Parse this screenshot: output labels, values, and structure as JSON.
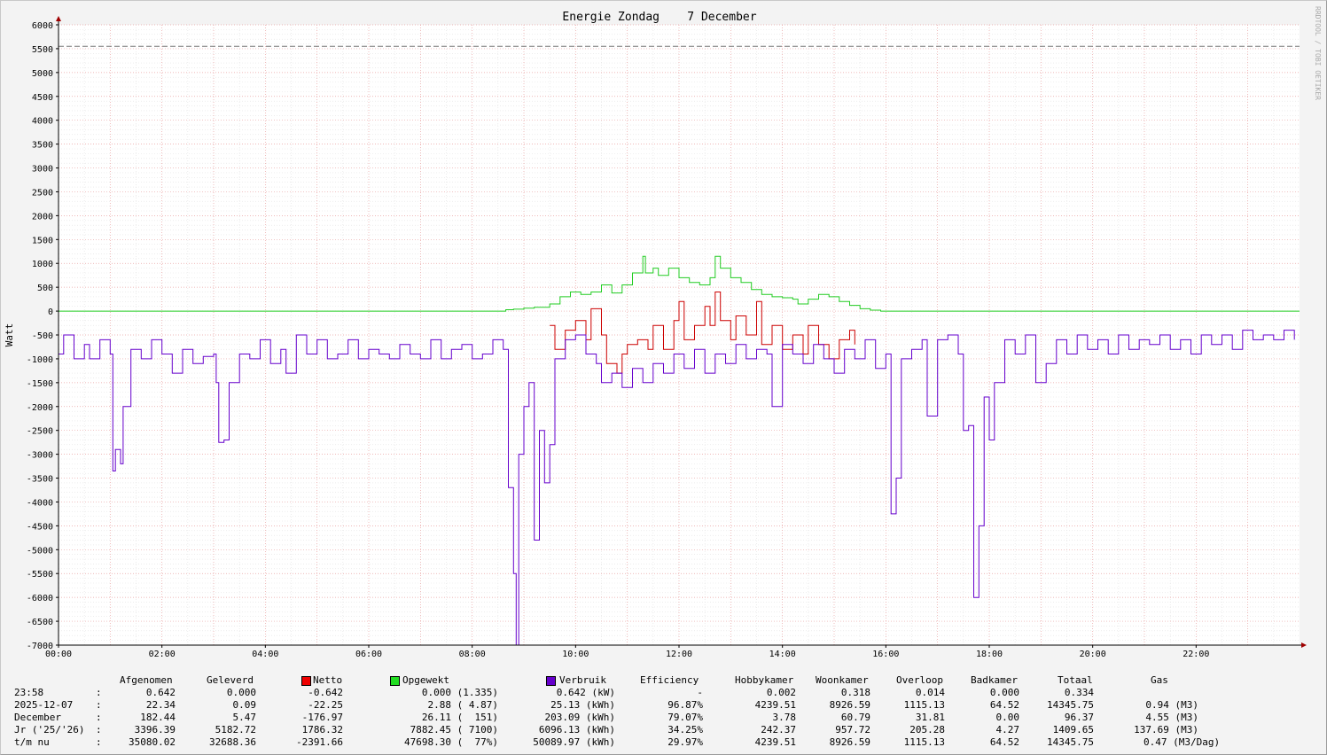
{
  "chart_data": {
    "type": "line",
    "title": "Energie Zondag    7 December",
    "ylabel": "Watt",
    "xlabel": "",
    "watermark": "RRDTOOL / TOBI OETIKER",
    "ylim": [
      -7000,
      6000
    ],
    "xlim": [
      0,
      24
    ],
    "yticks": [
      "6000",
      "5500",
      "5000",
      "4500",
      "4000",
      "3500",
      "3000",
      "2500",
      "2000",
      "1500",
      "1000",
      "500",
      "0",
      "-500",
      "-1000",
      "-1500",
      "-2000",
      "-2500",
      "-3000",
      "-3500",
      "-4000",
      "-4500",
      "-5000",
      "-5500",
      "-6000",
      "-6500",
      "-7000"
    ],
    "xticks": [
      "00:00",
      "02:00",
      "04:00",
      "06:00",
      "08:00",
      "10:00",
      "12:00",
      "14:00",
      "16:00",
      "18:00",
      "20:00",
      "22:00"
    ],
    "grid": true,
    "hline": {
      "value": 5550,
      "style": "dashed",
      "color": "#777777"
    },
    "series": [
      {
        "name": "Opgewekt",
        "color": "#22cc22",
        "points": [
          [
            0,
            0
          ],
          [
            8.6,
            0
          ],
          [
            8.65,
            30
          ],
          [
            8.8,
            40
          ],
          [
            9.0,
            60
          ],
          [
            9.2,
            80
          ],
          [
            9.5,
            150
          ],
          [
            9.7,
            300
          ],
          [
            9.9,
            400
          ],
          [
            10.1,
            350
          ],
          [
            10.3,
            400
          ],
          [
            10.5,
            550
          ],
          [
            10.7,
            380
          ],
          [
            10.9,
            550
          ],
          [
            11.1,
            800
          ],
          [
            11.3,
            1150
          ],
          [
            11.35,
            800
          ],
          [
            11.5,
            900
          ],
          [
            11.6,
            750
          ],
          [
            11.8,
            900
          ],
          [
            12.0,
            700
          ],
          [
            12.2,
            600
          ],
          [
            12.4,
            550
          ],
          [
            12.6,
            700
          ],
          [
            12.7,
            1150
          ],
          [
            12.8,
            900
          ],
          [
            13.0,
            700
          ],
          [
            13.2,
            600
          ],
          [
            13.4,
            450
          ],
          [
            13.6,
            350
          ],
          [
            13.8,
            300
          ],
          [
            14.0,
            280
          ],
          [
            14.2,
            250
          ],
          [
            14.3,
            150
          ],
          [
            14.5,
            250
          ],
          [
            14.7,
            350
          ],
          [
            14.9,
            300
          ],
          [
            15.1,
            200
          ],
          [
            15.3,
            120
          ],
          [
            15.5,
            50
          ],
          [
            15.7,
            20
          ],
          [
            15.9,
            0
          ],
          [
            24,
            0
          ]
        ]
      },
      {
        "name": "Netto",
        "color": "#cc0000",
        "points": [
          [
            9.5,
            -300
          ],
          [
            9.6,
            -800
          ],
          [
            9.8,
            -400
          ],
          [
            10.0,
            -200
          ],
          [
            10.2,
            -600
          ],
          [
            10.3,
            50
          ],
          [
            10.5,
            -500
          ],
          [
            10.6,
            -1100
          ],
          [
            10.8,
            -1300
          ],
          [
            10.9,
            -900
          ],
          [
            11.0,
            -700
          ],
          [
            11.2,
            -600
          ],
          [
            11.4,
            -800
          ],
          [
            11.5,
            -300
          ],
          [
            11.7,
            -800
          ],
          [
            11.9,
            -200
          ],
          [
            12.0,
            200
          ],
          [
            12.1,
            -600
          ],
          [
            12.3,
            -300
          ],
          [
            12.5,
            100
          ],
          [
            12.6,
            -300
          ],
          [
            12.7,
            400
          ],
          [
            12.8,
            -200
          ],
          [
            13.0,
            -600
          ],
          [
            13.1,
            -100
          ],
          [
            13.3,
            -500
          ],
          [
            13.5,
            200
          ],
          [
            13.6,
            -700
          ],
          [
            13.8,
            -300
          ],
          [
            14.0,
            -800
          ],
          [
            14.2,
            -500
          ],
          [
            14.4,
            -900
          ],
          [
            14.5,
            -300
          ],
          [
            14.7,
            -700
          ],
          [
            14.9,
            -1000
          ],
          [
            15.1,
            -600
          ],
          [
            15.3,
            -400
          ],
          [
            15.4,
            -700
          ]
        ]
      },
      {
        "name": "Verbruik",
        "color": "#6600cc",
        "points": [
          [
            0,
            -900
          ],
          [
            0.1,
            -500
          ],
          [
            0.3,
            -1000
          ],
          [
            0.5,
            -700
          ],
          [
            0.6,
            -1000
          ],
          [
            0.8,
            -600
          ],
          [
            1.0,
            -900
          ],
          [
            1.05,
            -3350
          ],
          [
            1.1,
            -2900
          ],
          [
            1.2,
            -3200
          ],
          [
            1.25,
            -2000
          ],
          [
            1.4,
            -800
          ],
          [
            1.6,
            -1000
          ],
          [
            1.8,
            -600
          ],
          [
            2.0,
            -900
          ],
          [
            2.2,
            -1300
          ],
          [
            2.4,
            -800
          ],
          [
            2.6,
            -1100
          ],
          [
            2.8,
            -950
          ],
          [
            3.0,
            -900
          ],
          [
            3.05,
            -1500
          ],
          [
            3.1,
            -2750
          ],
          [
            3.2,
            -2700
          ],
          [
            3.3,
            -1500
          ],
          [
            3.5,
            -900
          ],
          [
            3.7,
            -1000
          ],
          [
            3.9,
            -600
          ],
          [
            4.1,
            -1100
          ],
          [
            4.3,
            -800
          ],
          [
            4.4,
            -1300
          ],
          [
            4.6,
            -500
          ],
          [
            4.8,
            -900
          ],
          [
            5.0,
            -600
          ],
          [
            5.2,
            -1000
          ],
          [
            5.4,
            -900
          ],
          [
            5.6,
            -600
          ],
          [
            5.8,
            -1000
          ],
          [
            6.0,
            -800
          ],
          [
            6.2,
            -900
          ],
          [
            6.4,
            -1000
          ],
          [
            6.6,
            -700
          ],
          [
            6.8,
            -900
          ],
          [
            7.0,
            -1000
          ],
          [
            7.2,
            -600
          ],
          [
            7.4,
            -1000
          ],
          [
            7.6,
            -800
          ],
          [
            7.8,
            -700
          ],
          [
            8.0,
            -1000
          ],
          [
            8.2,
            -900
          ],
          [
            8.4,
            -600
          ],
          [
            8.6,
            -800
          ],
          [
            8.7,
            -3700
          ],
          [
            8.8,
            -5500
          ],
          [
            8.85,
            -7000
          ],
          [
            8.9,
            -3000
          ],
          [
            9.0,
            -2000
          ],
          [
            9.1,
            -1500
          ],
          [
            9.2,
            -4800
          ],
          [
            9.3,
            -2500
          ],
          [
            9.4,
            -3600
          ],
          [
            9.5,
            -2800
          ],
          [
            9.6,
            -1000
          ],
          [
            9.8,
            -600
          ],
          [
            10.0,
            -500
          ],
          [
            10.2,
            -900
          ],
          [
            10.4,
            -1100
          ],
          [
            10.5,
            -1500
          ],
          [
            10.7,
            -1300
          ],
          [
            10.9,
            -1600
          ],
          [
            11.1,
            -1200
          ],
          [
            11.3,
            -1500
          ],
          [
            11.5,
            -1100
          ],
          [
            11.7,
            -1300
          ],
          [
            11.9,
            -900
          ],
          [
            12.1,
            -1200
          ],
          [
            12.3,
            -800
          ],
          [
            12.5,
            -1300
          ],
          [
            12.7,
            -900
          ],
          [
            12.9,
            -1100
          ],
          [
            13.1,
            -700
          ],
          [
            13.3,
            -1000
          ],
          [
            13.5,
            -800
          ],
          [
            13.7,
            -900
          ],
          [
            13.8,
            -2000
          ],
          [
            14.0,
            -700
          ],
          [
            14.2,
            -900
          ],
          [
            14.4,
            -1100
          ],
          [
            14.6,
            -700
          ],
          [
            14.8,
            -1000
          ],
          [
            15.0,
            -1300
          ],
          [
            15.2,
            -800
          ],
          [
            15.4,
            -1000
          ],
          [
            15.6,
            -600
          ],
          [
            15.8,
            -1200
          ],
          [
            16.0,
            -900
          ],
          [
            16.1,
            -4250
          ],
          [
            16.2,
            -3500
          ],
          [
            16.3,
            -1000
          ],
          [
            16.5,
            -800
          ],
          [
            16.7,
            -600
          ],
          [
            16.8,
            -2200
          ],
          [
            17.0,
            -600
          ],
          [
            17.2,
            -500
          ],
          [
            17.4,
            -900
          ],
          [
            17.5,
            -2500
          ],
          [
            17.6,
            -2400
          ],
          [
            17.7,
            -6000
          ],
          [
            17.8,
            -4500
          ],
          [
            17.9,
            -1800
          ],
          [
            18.0,
            -2700
          ],
          [
            18.1,
            -1500
          ],
          [
            18.3,
            -600
          ],
          [
            18.5,
            -900
          ],
          [
            18.7,
            -500
          ],
          [
            18.9,
            -1500
          ],
          [
            19.1,
            -1100
          ],
          [
            19.3,
            -600
          ],
          [
            19.5,
            -900
          ],
          [
            19.7,
            -500
          ],
          [
            19.9,
            -800
          ],
          [
            20.1,
            -600
          ],
          [
            20.3,
            -900
          ],
          [
            20.5,
            -500
          ],
          [
            20.7,
            -800
          ],
          [
            20.9,
            -600
          ],
          [
            21.1,
            -700
          ],
          [
            21.3,
            -500
          ],
          [
            21.5,
            -800
          ],
          [
            21.7,
            -600
          ],
          [
            21.9,
            -900
          ],
          [
            22.1,
            -500
          ],
          [
            22.3,
            -700
          ],
          [
            22.5,
            -500
          ],
          [
            22.7,
            -800
          ],
          [
            22.9,
            -400
          ],
          [
            23.1,
            -600
          ],
          [
            23.3,
            -500
          ],
          [
            23.5,
            -600
          ],
          [
            23.7,
            -400
          ],
          [
            23.9,
            -600
          ]
        ]
      }
    ]
  },
  "table": {
    "headers": [
      "Afgenomen",
      "Geleverd",
      "Netto",
      "Opgewekt",
      "Verbruik",
      "Efficiency",
      "Hobbykamer",
      "Woonkamer",
      "Overloop",
      "Badkamer",
      "Totaal",
      "Gas"
    ],
    "rows": [
      {
        "label": "23:58",
        "sep": ":",
        "afgenomen": "0.642",
        "geleverd": "0.000",
        "netto": "-0.642",
        "opgewekt": "0.000 (1.335)",
        "verbruik": "0.642 (kW)",
        "efficiency": "-",
        "hobbykamer": "0.002",
        "woonkamer": "0.318",
        "overloop": "0.014",
        "badkamer": "0.000",
        "totaal": "0.334",
        "gas": ""
      },
      {
        "label": "2025-12-07",
        "sep": ":",
        "afgenomen": "22.34",
        "geleverd": "0.09",
        "netto": "-22.25",
        "opgewekt": "2.88 ( 4.87)",
        "verbruik": "25.13 (kWh)",
        "efficiency": "96.87%",
        "hobbykamer": "4239.51",
        "woonkamer": "8926.59",
        "overloop": "1115.13",
        "badkamer": "64.52",
        "totaal": "14345.75",
        "gas": "0.94 (M3)"
      },
      {
        "label": "December",
        "sep": ":",
        "afgenomen": "182.44",
        "geleverd": "5.47",
        "netto": "-176.97",
        "opgewekt": "26.11 (  151)",
        "verbruik": "203.09 (kWh)",
        "efficiency": "79.07%",
        "hobbykamer": "3.78",
        "woonkamer": "60.79",
        "overloop": "31.81",
        "badkamer": "0.00",
        "totaal": "96.37",
        "gas": "4.55 (M3)"
      },
      {
        "label": "Jr ('25/'26)",
        "sep": ":",
        "afgenomen": "3396.39",
        "geleverd": "5182.72",
        "netto": "1786.32",
        "opgewekt": "7882.45 ( 7100)",
        "verbruik": "6096.13 (kWh)",
        "efficiency": "34.25%",
        "hobbykamer": "242.37",
        "woonkamer": "957.72",
        "overloop": "205.28",
        "badkamer": "4.27",
        "totaal": "1409.65",
        "gas": "137.69 (M3)"
      },
      {
        "label": "t/m nu",
        "sep": ":",
        "afgenomen": "35080.02",
        "geleverd": "32688.36",
        "netto": "-2391.66",
        "opgewekt": "47698.30 (  77%)",
        "verbruik": "50089.97 (kWh)",
        "efficiency": "29.97%",
        "hobbykamer": "4239.51",
        "woonkamer": "8926.59",
        "overloop": "1115.13",
        "badkamer": "64.52",
        "totaal": "14345.75",
        "gas": "0.47 (M3/Dag)"
      }
    ],
    "swatch_colors": {
      "netto": "#ee0000",
      "opgewekt": "#22dd22",
      "verbruik": "#6600cc"
    }
  }
}
